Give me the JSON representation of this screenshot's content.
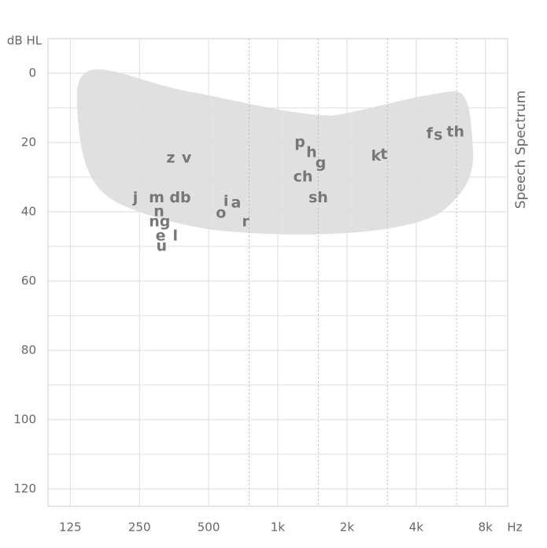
{
  "chart_data": {
    "type": "audiogram",
    "y_axis_label": "dB HL",
    "x_unit": "Hz",
    "side_label": "Speech Spectrum",
    "xlim": [
      100,
      10000
    ],
    "log_x": true,
    "xticks": [
      125,
      250,
      500,
      {
        "value": 1000,
        "label": "1k"
      },
      {
        "value": 2000,
        "label": "2k"
      },
      {
        "value": 4000,
        "label": "4k"
      },
      {
        "value": 8000,
        "label": "8k"
      }
    ],
    "x_minor_ticks": [
      750,
      1500,
      3000,
      6000
    ],
    "ylim": [
      -10,
      125
    ],
    "y_inverted": true,
    "yticks": [
      0,
      20,
      40,
      60,
      80,
      100,
      120
    ],
    "y_minor_ticks": [
      10,
      30,
      50,
      70,
      90,
      110
    ],
    "region_color": "#e0e0e0",
    "phonemes": [
      {
        "label": "z",
        "x": 342,
        "y": 24.5
      },
      {
        "label": "v",
        "x": 401,
        "y": 24.5
      },
      {
        "label": "j",
        "x": 240,
        "y": 36
      },
      {
        "label": "m",
        "x": 297,
        "y": 36
      },
      {
        "label": "db",
        "x": 376,
        "y": 36
      },
      {
        "label": "n",
        "x": 304,
        "y": 40
      },
      {
        "label": "ng",
        "x": 306,
        "y": 43
      },
      {
        "label": "e",
        "x": 309,
        "y": 47
      },
      {
        "label": "l",
        "x": 358,
        "y": 47
      },
      {
        "label": "u",
        "x": 312,
        "y": 50
      },
      {
        "label": "i",
        "x": 595,
        "y": 37
      },
      {
        "label": "a",
        "x": 658,
        "y": 37.5
      },
      {
        "label": "o",
        "x": 566,
        "y": 40.5
      },
      {
        "label": "r",
        "x": 724,
        "y": 43
      },
      {
        "label": "p",
        "x": 1247,
        "y": 20
      },
      {
        "label": "h",
        "x": 1403,
        "y": 23
      },
      {
        "label": "g",
        "x": 1538,
        "y": 26
      },
      {
        "label": "ch",
        "x": 1287,
        "y": 30
      },
      {
        "label": "sh",
        "x": 1500,
        "y": 36
      },
      {
        "label": "k",
        "x": 2675,
        "y": 24
      },
      {
        "label": "t",
        "x": 2896,
        "y": 23.5
      },
      {
        "label": "f",
        "x": 4571,
        "y": 17.5
      },
      {
        "label": "s",
        "x": 4988,
        "y": 18
      },
      {
        "label": "th",
        "x": 5930,
        "y": 17
      }
    ]
  }
}
